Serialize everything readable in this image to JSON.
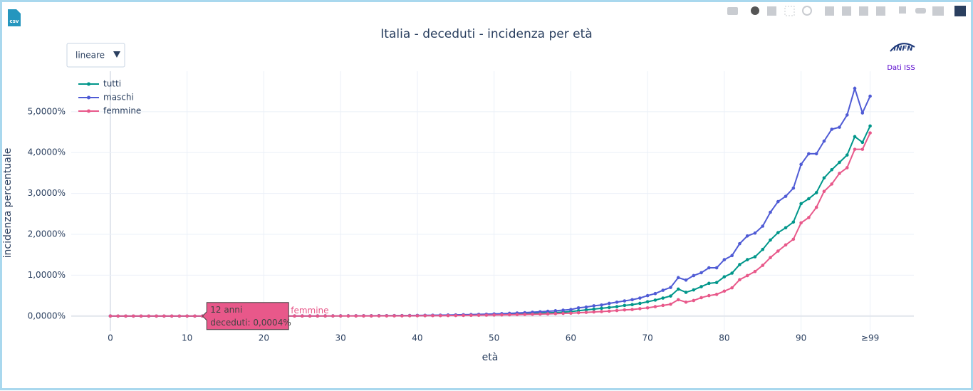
{
  "chart_data": {
    "type": "line",
    "title": "Italia - deceduti - incidenza per età",
    "x_label": "età",
    "y_label": "incidenza percentuale",
    "dropdown": "lineare",
    "csv_icon": "csv",
    "logo": "INFN",
    "source_link": "Dati ISS",
    "grid": true,
    "legend_position": "top-left",
    "xlim": [
      -5.1,
      104.7
    ],
    "ylim": [
      -0.37,
      5.99
    ],
    "xticks": [
      0,
      10,
      20,
      30,
      40,
      50,
      60,
      70,
      80,
      90,
      {
        "value": 99,
        "label": "≥99"
      }
    ],
    "yticks": [
      {
        "value": 0,
        "label": "0,0000%"
      },
      {
        "value": 1,
        "label": "1,0000%"
      },
      {
        "value": 2,
        "label": "2,0000%"
      },
      {
        "value": 3,
        "label": "3,0000%"
      },
      {
        "value": 4,
        "label": "4,0000%"
      },
      {
        "value": 5,
        "label": "5,0000%"
      }
    ],
    "x": [
      0,
      1,
      2,
      3,
      4,
      5,
      6,
      7,
      8,
      9,
      10,
      11,
      12,
      13,
      14,
      15,
      16,
      17,
      18,
      19,
      20,
      21,
      22,
      23,
      24,
      25,
      26,
      27,
      28,
      29,
      30,
      31,
      32,
      33,
      34,
      35,
      36,
      37,
      38,
      39,
      40,
      41,
      42,
      43,
      44,
      45,
      46,
      47,
      48,
      49,
      50,
      51,
      52,
      53,
      54,
      55,
      56,
      57,
      58,
      59,
      60,
      61,
      62,
      63,
      64,
      65,
      66,
      67,
      68,
      69,
      70,
      71,
      72,
      73,
      74,
      75,
      76,
      77,
      78,
      79,
      80,
      81,
      82,
      83,
      84,
      85,
      86,
      87,
      88,
      89,
      90,
      91,
      92,
      93,
      94,
      95,
      96,
      97,
      98,
      99
    ],
    "series": [
      {
        "name": "tutti",
        "color": "#00968a",
        "values": [
          0.001,
          0,
          0,
          0,
          0,
          0,
          0,
          0,
          0,
          0,
          0,
          0,
          0.0005,
          0,
          0,
          0.001,
          0.001,
          0.001,
          0.001,
          0.001,
          0.001,
          0.001,
          0.001,
          0.001,
          0.002,
          0.002,
          0.002,
          0.002,
          0.003,
          0.003,
          0.003,
          0.004,
          0.004,
          0.005,
          0.005,
          0.006,
          0.007,
          0.008,
          0.009,
          0.01,
          0.011,
          0.012,
          0.014,
          0.016,
          0.018,
          0.02,
          0.022,
          0.025,
          0.028,
          0.031,
          0.035,
          0.04,
          0.045,
          0.05,
          0.056,
          0.063,
          0.07,
          0.078,
          0.087,
          0.097,
          0.11,
          0.13,
          0.15,
          0.17,
          0.19,
          0.21,
          0.23,
          0.26,
          0.28,
          0.31,
          0.35,
          0.39,
          0.44,
          0.49,
          0.66,
          0.58,
          0.64,
          0.72,
          0.8,
          0.82,
          0.96,
          1.05,
          1.26,
          1.38,
          1.45,
          1.63,
          1.86,
          2.04,
          2.16,
          2.3,
          2.75,
          2.87,
          3.02,
          3.38,
          3.58,
          3.76,
          3.94,
          4.39,
          4.25,
          4.65
        ]
      },
      {
        "name": "maschi",
        "color": "#4f5bd5",
        "values": [
          0.002,
          0,
          0,
          0,
          0,
          0,
          0,
          0,
          0,
          0,
          0,
          0,
          0.0005,
          0,
          0,
          0.001,
          0.001,
          0.001,
          0.001,
          0.001,
          0.002,
          0.002,
          0.002,
          0.002,
          0.002,
          0.003,
          0.003,
          0.003,
          0.004,
          0.004,
          0.005,
          0.005,
          0.006,
          0.006,
          0.007,
          0.008,
          0.009,
          0.01,
          0.011,
          0.013,
          0.015,
          0.017,
          0.019,
          0.022,
          0.025,
          0.028,
          0.032,
          0.036,
          0.041,
          0.046,
          0.052,
          0.058,
          0.066,
          0.074,
          0.083,
          0.093,
          0.104,
          0.116,
          0.129,
          0.143,
          0.16,
          0.2,
          0.22,
          0.25,
          0.27,
          0.31,
          0.34,
          0.37,
          0.4,
          0.44,
          0.5,
          0.55,
          0.63,
          0.7,
          0.94,
          0.88,
          0.99,
          1.06,
          1.18,
          1.18,
          1.38,
          1.48,
          1.77,
          1.96,
          2.03,
          2.2,
          2.54,
          2.8,
          2.93,
          3.13,
          3.71,
          3.97,
          3.97,
          4.28,
          4.57,
          4.62,
          4.92,
          5.57,
          4.97,
          5.38
        ]
      },
      {
        "name": "femmine",
        "color": "#e8588a",
        "values": [
          0.001,
          0,
          0,
          0,
          0,
          0,
          0,
          0,
          0,
          0,
          0,
          0,
          0.0004,
          0,
          0,
          0,
          0,
          0.001,
          0.001,
          0.001,
          0.001,
          0.001,
          0.001,
          0.001,
          0.001,
          0.001,
          0.001,
          0.001,
          0.002,
          0.002,
          0.002,
          0.002,
          0.003,
          0.003,
          0.003,
          0.004,
          0.004,
          0.005,
          0.005,
          0.006,
          0.007,
          0.008,
          0.009,
          0.01,
          0.011,
          0.013,
          0.015,
          0.017,
          0.019,
          0.022,
          0.025,
          0.028,
          0.031,
          0.035,
          0.039,
          0.043,
          0.048,
          0.053,
          0.059,
          0.065,
          0.07,
          0.08,
          0.09,
          0.1,
          0.11,
          0.12,
          0.135,
          0.15,
          0.16,
          0.18,
          0.2,
          0.23,
          0.26,
          0.29,
          0.4,
          0.34,
          0.38,
          0.45,
          0.5,
          0.53,
          0.61,
          0.69,
          0.89,
          0.99,
          1.09,
          1.24,
          1.43,
          1.59,
          1.74,
          1.88,
          2.28,
          2.41,
          2.66,
          3.05,
          3.23,
          3.49,
          3.63,
          4.08,
          4.08,
          4.48
        ]
      }
    ],
    "tooltip": {
      "title": "12 anni",
      "text": "deceduti: 0,0004%",
      "series": "femmine"
    }
  }
}
